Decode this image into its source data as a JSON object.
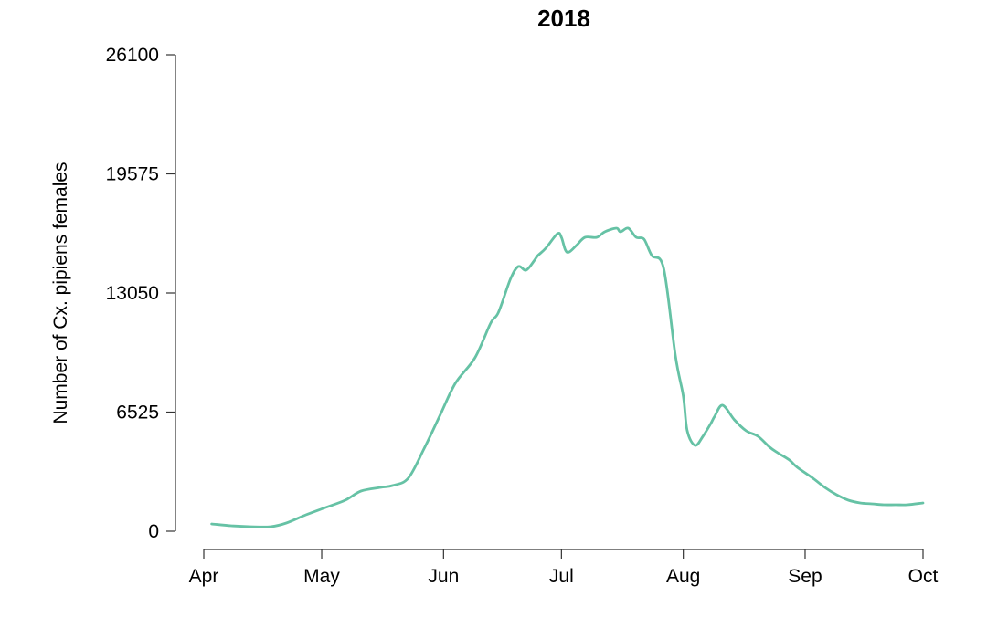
{
  "chart_data": {
    "type": "line",
    "title": "2018",
    "xlabel": "",
    "ylabel": "Number of Cx. pipiens females",
    "x_ticks": [
      "Apr",
      "May",
      "Jun",
      "Jul",
      "Aug",
      "Sep",
      "Oct"
    ],
    "y_ticks": [
      0,
      6525,
      13050,
      19575,
      26100
    ],
    "xlim": [
      "2018-04-01",
      "2018-10-01"
    ],
    "ylim": [
      0,
      26100
    ],
    "grid": false,
    "line_color": "#66c2a5",
    "series": [
      {
        "x": [
          "2018-04-03",
          "2018-04-08",
          "2018-04-13",
          "2018-04-18",
          "2018-04-22",
          "2018-04-27",
          "2018-05-02",
          "2018-05-07",
          "2018-05-11",
          "2018-05-16",
          "2018-05-19",
          "2018-05-23",
          "2018-05-27",
          "2018-05-31",
          "2018-06-04",
          "2018-06-09",
          "2018-06-13",
          "2018-06-15",
          "2018-06-18",
          "2018-06-20",
          "2018-06-22",
          "2018-06-24",
          "2018-06-25",
          "2018-06-27",
          "2018-06-30",
          "2018-07-01",
          "2018-07-02",
          "2018-07-03",
          "2018-07-05",
          "2018-07-07",
          "2018-07-10",
          "2018-07-12",
          "2018-07-15",
          "2018-07-16",
          "2018-07-18",
          "2018-07-20",
          "2018-07-22",
          "2018-07-24",
          "2018-07-27",
          "2018-07-30",
          "2018-08-01",
          "2018-08-02",
          "2018-08-04",
          "2018-08-06",
          "2018-08-08",
          "2018-08-09",
          "2018-08-11",
          "2018-08-14",
          "2018-08-17",
          "2018-08-20",
          "2018-08-23",
          "2018-08-25",
          "2018-08-28",
          "2018-08-30",
          "2018-09-03",
          "2018-09-06",
          "2018-09-09",
          "2018-09-12",
          "2018-09-15",
          "2018-09-18",
          "2018-09-21",
          "2018-09-24",
          "2018-09-27",
          "2018-10-01"
        ],
        "y": [
          400,
          300,
          250,
          250,
          450,
          900,
          1300,
          1700,
          2200,
          2400,
          2500,
          2900,
          4500,
          6300,
          8100,
          9500,
          11400,
          12000,
          13800,
          14500,
          14300,
          14800,
          15100,
          15500,
          16300,
          16100,
          15400,
          15300,
          15700,
          16100,
          16100,
          16400,
          16600,
          16400,
          16600,
          16100,
          16000,
          15100,
          14400,
          9600,
          7400,
          5500,
          4700,
          5200,
          5900,
          6300,
          6900,
          6100,
          5500,
          5200,
          4600,
          4300,
          3900,
          3500,
          2900,
          2400,
          2000,
          1700,
          1550,
          1500,
          1450,
          1450,
          1450,
          1550
        ]
      }
    ]
  }
}
